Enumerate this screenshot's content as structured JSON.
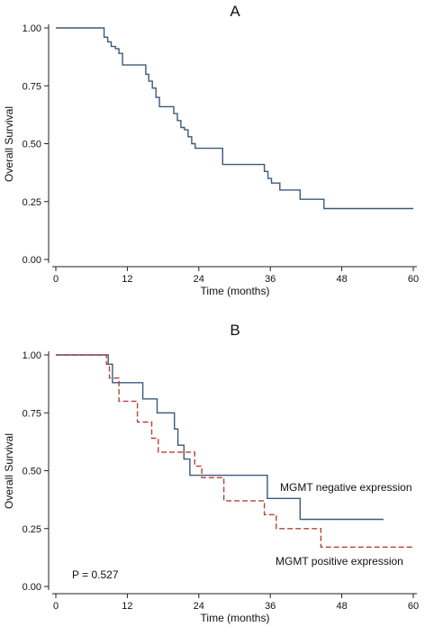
{
  "chart_data": [
    {
      "panel_label": "A",
      "type": "line",
      "step": true,
      "xlabel": "Time (months)",
      "ylabel": "Overall Survival",
      "xlim": [
        0,
        60
      ],
      "ylim": [
        0,
        1
      ],
      "x_ticks": [
        "0",
        "12",
        "24",
        "36",
        "48",
        "60"
      ],
      "y_ticks": [
        "0.00",
        "0.25",
        "0.50",
        "0.75",
        "1.00"
      ],
      "grid": false,
      "colors": {
        "series": "#3b5a7a",
        "axis": "#222222"
      },
      "series": [
        {
          "x": [
            0,
            8.1,
            8.7,
            9.3,
            10.0,
            10.6,
            11.2,
            14.5,
            15.1,
            15.6,
            16.2,
            16.8,
            17.4,
            19.8,
            20.4,
            21.0,
            21.6,
            22.2,
            22.8,
            23.4,
            28.0,
            35.0,
            35.6,
            36.2,
            37.6,
            39.6,
            41.0,
            45.0,
            60.0
          ],
          "y": [
            1.0,
            0.96,
            0.94,
            0.92,
            0.91,
            0.89,
            0.84,
            0.84,
            0.8,
            0.77,
            0.74,
            0.7,
            0.66,
            0.63,
            0.6,
            0.57,
            0.56,
            0.53,
            0.5,
            0.48,
            0.41,
            0.38,
            0.35,
            0.33,
            0.3,
            0.3,
            0.26,
            0.22,
            0.22
          ]
        }
      ]
    },
    {
      "panel_label": "B",
      "type": "line",
      "step": true,
      "xlabel": "Time (months)",
      "ylabel": "Overall Survival",
      "xlim": [
        0,
        60
      ],
      "ylim": [
        0,
        1
      ],
      "x_ticks": [
        "0",
        "12",
        "24",
        "36",
        "48",
        "60"
      ],
      "y_ticks": [
        "0.00",
        "0.25",
        "0.50",
        "0.75",
        "1.00"
      ],
      "grid": false,
      "annotation": "P = 0.527",
      "colors": {
        "axis": "#222222"
      },
      "series": [
        {
          "name": "MGMT negative expression",
          "color": "#3b5a7a",
          "dash": false,
          "x": [
            0,
            8.8,
            9.5,
            11.4,
            14.6,
            17.0,
            19.9,
            20.5,
            21.5,
            22.5,
            35.5,
            41.0,
            55.0
          ],
          "y": [
            1.0,
            0.96,
            0.88,
            0.88,
            0.81,
            0.75,
            0.68,
            0.61,
            0.55,
            0.48,
            0.38,
            0.29,
            0.29
          ]
        },
        {
          "name": "MGMT positive expression",
          "color": "#b5413c",
          "dash": true,
          "x": [
            0,
            8.5,
            9.0,
            10.6,
            13.7,
            16.1,
            17.2,
            23.3,
            24.5,
            28.2,
            35.0,
            37.0,
            44.5,
            60.0
          ],
          "y": [
            1.0,
            0.96,
            0.9,
            0.8,
            0.71,
            0.64,
            0.58,
            0.52,
            0.47,
            0.37,
            0.31,
            0.25,
            0.17,
            0.17
          ]
        }
      ]
    }
  ]
}
